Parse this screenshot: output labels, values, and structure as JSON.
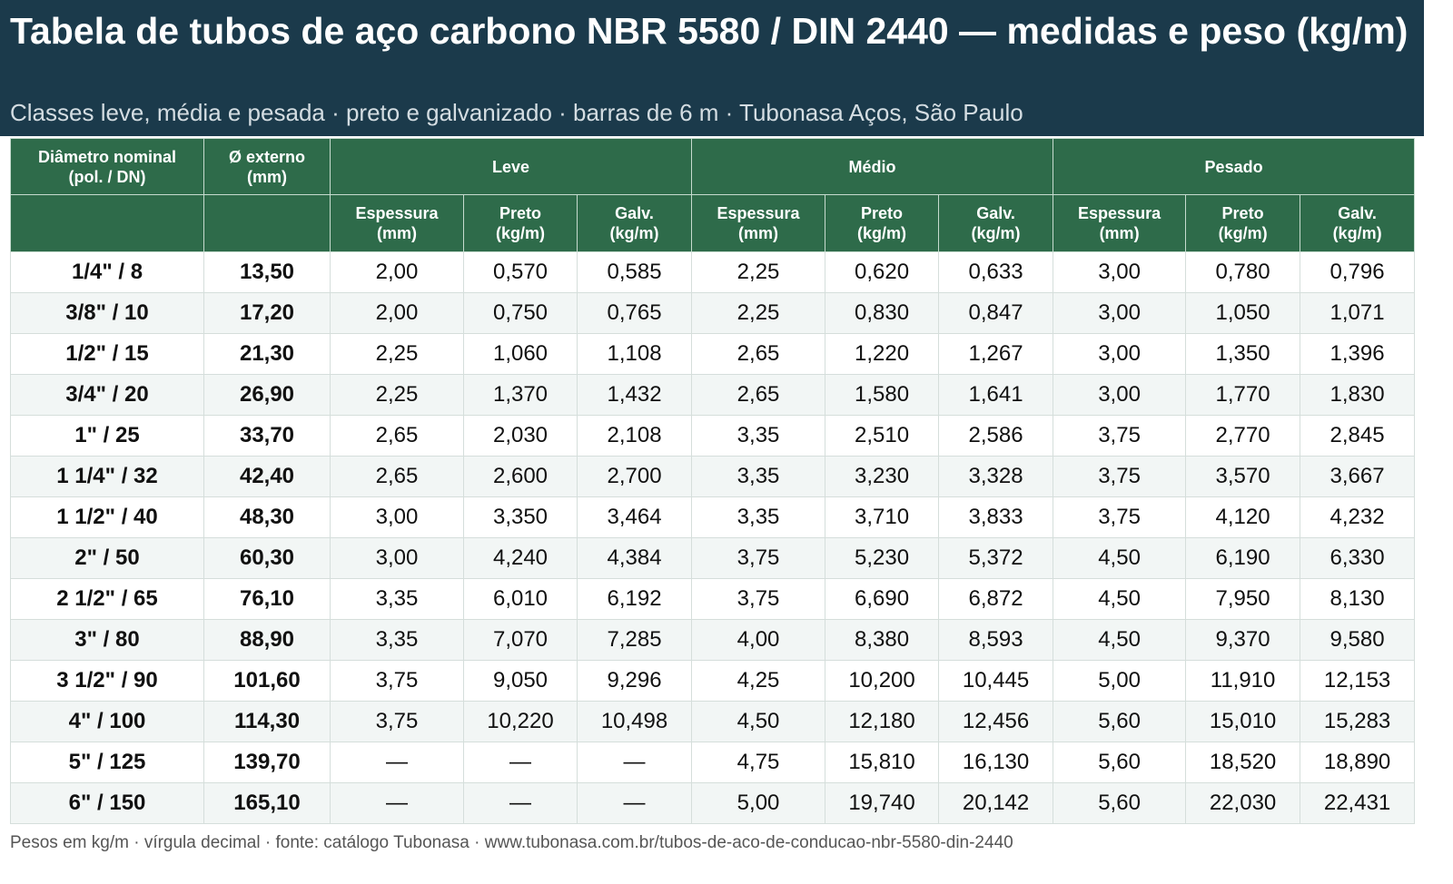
{
  "header": {
    "title": "Tabela de tubos de aço carbono NBR 5580 / DIN 2440 — medidas e peso (kg/m)",
    "subtitle": "Classes leve, média e pesada · preto e galvanizado · barras de 6 m · Tubonasa Aços, São Paulo"
  },
  "table": {
    "group_headers": [
      "Diâmetro nominal\n(pol. / DN)",
      "Ø externo\n(mm)",
      "Leve",
      "Médio",
      "Pesado"
    ],
    "sub_headers": [
      "Espessura\n(mm)",
      "Preto\n(kg/m)",
      "Galv.\n(kg/m)",
      "Espessura\n(mm)",
      "Preto\n(kg/m)",
      "Galv.\n(kg/m)",
      "Espessura\n(mm)",
      "Preto\n(kg/m)",
      "Galv.\n(kg/m)"
    ],
    "rows": [
      [
        "1/4\" / 8",
        "13,50",
        "2,00",
        "0,570",
        "0,585",
        "2,25",
        "0,620",
        "0,633",
        "3,00",
        "0,780",
        "0,796"
      ],
      [
        "3/8\" / 10",
        "17,20",
        "2,00",
        "0,750",
        "0,765",
        "2,25",
        "0,830",
        "0,847",
        "3,00",
        "1,050",
        "1,071"
      ],
      [
        "1/2\" / 15",
        "21,30",
        "2,25",
        "1,060",
        "1,108",
        "2,65",
        "1,220",
        "1,267",
        "3,00",
        "1,350",
        "1,396"
      ],
      [
        "3/4\" / 20",
        "26,90",
        "2,25",
        "1,370",
        "1,432",
        "2,65",
        "1,580",
        "1,641",
        "3,00",
        "1,770",
        "1,830"
      ],
      [
        "1\" / 25",
        "33,70",
        "2,65",
        "2,030",
        "2,108",
        "3,35",
        "2,510",
        "2,586",
        "3,75",
        "2,770",
        "2,845"
      ],
      [
        "1 1/4\" / 32",
        "42,40",
        "2,65",
        "2,600",
        "2,700",
        "3,35",
        "3,230",
        "3,328",
        "3,75",
        "3,570",
        "3,667"
      ],
      [
        "1 1/2\" / 40",
        "48,30",
        "3,00",
        "3,350",
        "3,464",
        "3,35",
        "3,710",
        "3,833",
        "3,75",
        "4,120",
        "4,232"
      ],
      [
        "2\" / 50",
        "60,30",
        "3,00",
        "4,240",
        "4,384",
        "3,75",
        "5,230",
        "5,372",
        "4,50",
        "6,190",
        "6,330"
      ],
      [
        "2 1/2\" / 65",
        "76,10",
        "3,35",
        "6,010",
        "6,192",
        "3,75",
        "6,690",
        "6,872",
        "4,50",
        "7,950",
        "8,130"
      ],
      [
        "3\" / 80",
        "88,90",
        "3,35",
        "7,070",
        "7,285",
        "4,00",
        "8,380",
        "8,593",
        "4,50",
        "9,370",
        "9,580"
      ],
      [
        "3 1/2\" / 90",
        "101,60",
        "3,75",
        "9,050",
        "9,296",
        "4,25",
        "10,200",
        "10,445",
        "5,00",
        "11,910",
        "12,153"
      ],
      [
        "4\" / 100",
        "114,30",
        "3,75",
        "10,220",
        "10,498",
        "4,50",
        "12,180",
        "12,456",
        "5,60",
        "15,010",
        "15,283"
      ],
      [
        "5\" / 125",
        "139,70",
        "—",
        "—",
        "—",
        "4,75",
        "15,810",
        "16,130",
        "5,60",
        "18,520",
        "18,890"
      ],
      [
        "6\" / 150",
        "165,10",
        "—",
        "—",
        "—",
        "5,00",
        "19,740",
        "20,142",
        "5,60",
        "22,030",
        "22,431"
      ]
    ]
  },
  "footer": "Pesos em kg/m · vírgula decimal · fonte: catálogo Tubonasa · www.tubonasa.com.br/tubos-de-aco-de-conducao-nbr-5580-din-2440"
}
